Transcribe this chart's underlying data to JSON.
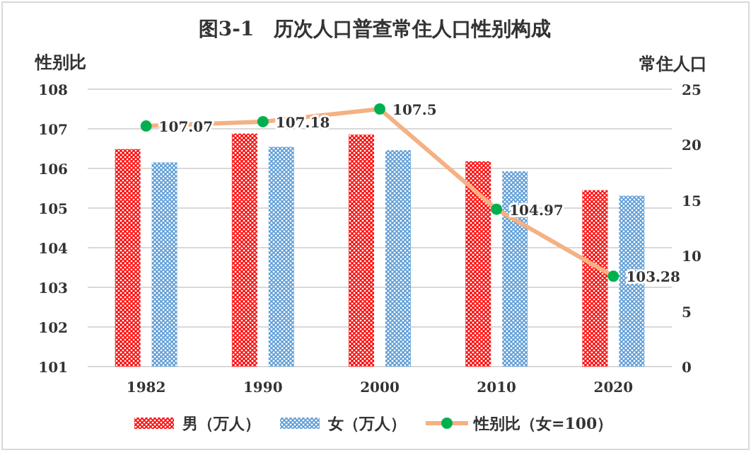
{
  "chart_data": {
    "type": "bar",
    "title": "图3-1　历次人口普查常住人口性别构成",
    "ylabel": "性别比",
    "y2label": "常住人口",
    "categories": [
      "1982",
      "1990",
      "2000",
      "2010",
      "2020"
    ],
    "series": [
      {
        "name": "男（万人）",
        "axis": "y2",
        "color": "#ff0000",
        "values": [
          19.6,
          21.0,
          20.9,
          18.5,
          15.9
        ]
      },
      {
        "name": "女（万人）",
        "axis": "y2",
        "color": "#5b9bd5",
        "values": [
          18.4,
          19.8,
          19.5,
          17.6,
          15.4
        ]
      },
      {
        "name": "性别比（女=100）",
        "type": "line",
        "axis": "y",
        "color": "#f4b183",
        "marker": "circle",
        "values": [
          107.07,
          107.18,
          107.5,
          104.97,
          103.28
        ],
        "value_labels": [
          "107.07",
          "107.18",
          "107.5",
          "104.97",
          "103.28"
        ]
      }
    ],
    "ylim": [
      101,
      108
    ],
    "yticks": [
      101,
      102,
      103,
      104,
      105,
      106,
      107,
      108
    ],
    "y2lim": [
      0,
      25
    ],
    "y2ticks": [
      0,
      5,
      10,
      15,
      20,
      25
    ],
    "grid": "y",
    "legend": "bottom"
  }
}
